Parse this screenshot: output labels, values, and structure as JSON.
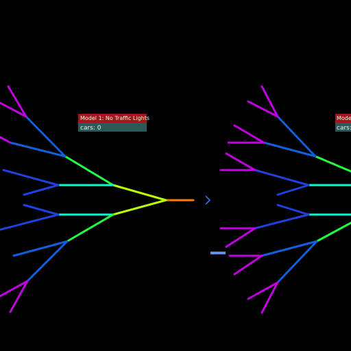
{
  "models": [
    {
      "title": "Model 1: No Traffic Lights",
      "cars": "cars: 0"
    },
    {
      "title": "Mode",
      "cars": "cars:"
    }
  ]
}
